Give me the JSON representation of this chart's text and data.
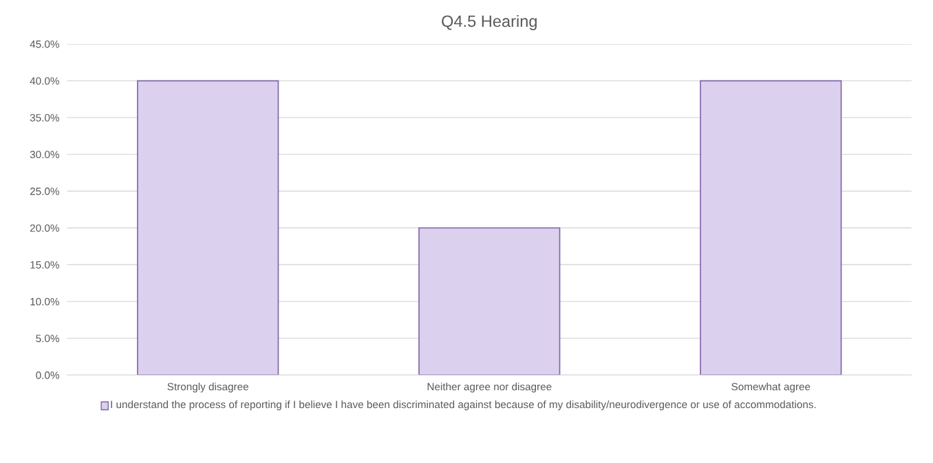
{
  "chart_data": {
    "type": "bar",
    "title": "Q4.5 Hearing",
    "categories": [
      "Strongly disagree",
      "Neither agree nor disagree",
      "Somewhat agree"
    ],
    "series": [
      {
        "name": "I understand the process of reporting if I believe I have been discriminated against because of my disability/neurodivergence or use of accommodations.",
        "color": "#dcd0ef",
        "values": [
          40,
          20,
          40
        ]
      }
    ],
    "ylim": [
      0,
      45
    ],
    "yticks": [
      {
        "value": 0,
        "label": "0.0%"
      },
      {
        "value": 5,
        "label": "5.0%"
      },
      {
        "value": 10,
        "label": "10.0%"
      },
      {
        "value": 15,
        "label": "15.0%"
      },
      {
        "value": 20,
        "label": "20.0%"
      },
      {
        "value": 25,
        "label": "25.0%"
      },
      {
        "value": 30,
        "label": "30.0%"
      },
      {
        "value": 35,
        "label": "35.0%"
      },
      {
        "value": 40,
        "label": "40.0%"
      },
      {
        "value": 45,
        "label": "45.0%"
      }
    ],
    "grid": "y",
    "legend": "bottom"
  }
}
